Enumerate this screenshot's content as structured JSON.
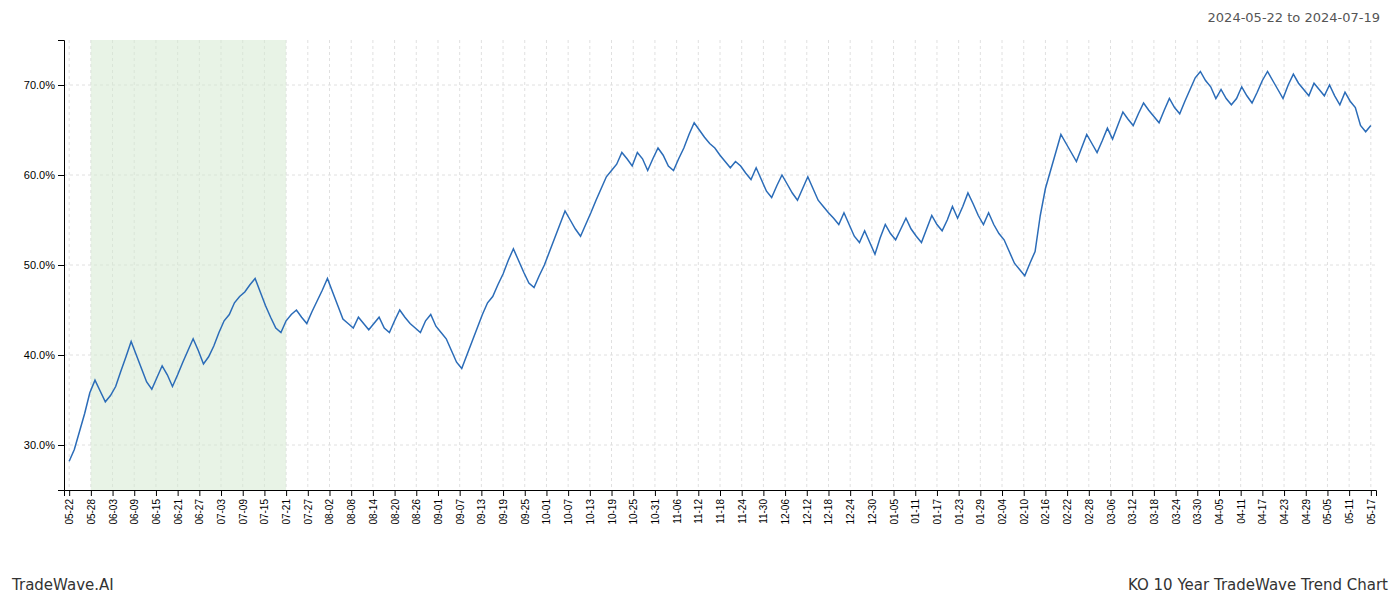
{
  "chart_data": {
    "type": "line",
    "title": "2024-05-22 to 2024-07-19",
    "annotations": [
      "TradeWave.AI",
      "KO 10 Year TradeWave Trend Chart"
    ],
    "color": "#2B6CB8",
    "grid": true,
    "xlim": [
      -1,
      253
    ],
    "xticks": [
      {
        "value": 0,
        "label": "05-22"
      },
      {
        "value": 4.2,
        "label": "05-28"
      },
      {
        "value": 8.4,
        "label": "06-03"
      },
      {
        "value": 12.6,
        "label": "06-09"
      },
      {
        "value": 16.8,
        "label": "06-15"
      },
      {
        "value": 21,
        "label": "06-21"
      },
      {
        "value": 25.2,
        "label": "06-27"
      },
      {
        "value": 29.4,
        "label": "07-03"
      },
      {
        "value": 33.6,
        "label": "07-09"
      },
      {
        "value": 37.8,
        "label": "07-15"
      },
      {
        "value": 42,
        "label": "07-21"
      },
      {
        "value": 46.2,
        "label": "07-27"
      },
      {
        "value": 50.4,
        "label": "08-02"
      },
      {
        "value": 54.6,
        "label": "08-08"
      },
      {
        "value": 58.8,
        "label": "08-14"
      },
      {
        "value": 63,
        "label": "08-20"
      },
      {
        "value": 67.2,
        "label": "08-26"
      },
      {
        "value": 71.4,
        "label": "09-01"
      },
      {
        "value": 75.6,
        "label": "09-07"
      },
      {
        "value": 79.8,
        "label": "09-13"
      },
      {
        "value": 84,
        "label": "09-19"
      },
      {
        "value": 88.2,
        "label": "09-25"
      },
      {
        "value": 92.4,
        "label": "10-01"
      },
      {
        "value": 96.6,
        "label": "10-07"
      },
      {
        "value": 100.8,
        "label": "10-13"
      },
      {
        "value": 105,
        "label": "10-19"
      },
      {
        "value": 109.2,
        "label": "10-25"
      },
      {
        "value": 113.4,
        "label": "10-31"
      },
      {
        "value": 117.6,
        "label": "11-06"
      },
      {
        "value": 121.8,
        "label": "11-12"
      },
      {
        "value": 126,
        "label": "11-18"
      },
      {
        "value": 130.2,
        "label": "11-24"
      },
      {
        "value": 134.4,
        "label": "11-30"
      },
      {
        "value": 138.6,
        "label": "12-06"
      },
      {
        "value": 142.8,
        "label": "12-12"
      },
      {
        "value": 147,
        "label": "12-18"
      },
      {
        "value": 151.2,
        "label": "12-24"
      },
      {
        "value": 155.4,
        "label": "12-30"
      },
      {
        "value": 159.6,
        "label": "01-05"
      },
      {
        "value": 163.8,
        "label": "01-11"
      },
      {
        "value": 168,
        "label": "01-17"
      },
      {
        "value": 172.2,
        "label": "01-23"
      },
      {
        "value": 176.4,
        "label": "01-29"
      },
      {
        "value": 180.6,
        "label": "02-04"
      },
      {
        "value": 184.8,
        "label": "02-10"
      },
      {
        "value": 189,
        "label": "02-16"
      },
      {
        "value": 193.2,
        "label": "02-22"
      },
      {
        "value": 197.4,
        "label": "02-28"
      },
      {
        "value": 201.6,
        "label": "03-06"
      },
      {
        "value": 205.8,
        "label": "03-12"
      },
      {
        "value": 210,
        "label": "03-18"
      },
      {
        "value": 214.2,
        "label": "03-24"
      },
      {
        "value": 218.4,
        "label": "03-30"
      },
      {
        "value": 222.6,
        "label": "04-05"
      },
      {
        "value": 226.8,
        "label": "04-11"
      },
      {
        "value": 231,
        "label": "04-17"
      },
      {
        "value": 235.2,
        "label": "04-23"
      },
      {
        "value": 239.4,
        "label": "04-29"
      },
      {
        "value": 243.6,
        "label": "05-05"
      },
      {
        "value": 247.8,
        "label": "05-11"
      },
      {
        "value": 252,
        "label": "05-17"
      }
    ],
    "ylim": [
      25,
      75
    ],
    "yticks": [
      {
        "value": 30,
        "label": "30.0%"
      },
      {
        "value": 40,
        "label": "40.0%"
      },
      {
        "value": 50,
        "label": "50.0%"
      },
      {
        "value": 60,
        "label": "60.0%"
      },
      {
        "value": 70,
        "label": "70.0%"
      }
    ],
    "span": {
      "x": [
        4.2,
        42
      ],
      "color": "#d6ead2"
    },
    "values": [
      28.2,
      29.5,
      31.5,
      33.5,
      35.8,
      37.2,
      36.0,
      34.8,
      35.5,
      36.5,
      38.2,
      39.8,
      41.5,
      40.0,
      38.5,
      37.0,
      36.2,
      37.5,
      38.8,
      37.8,
      36.5,
      37.8,
      39.2,
      40.5,
      41.8,
      40.5,
      39.0,
      39.8,
      41.0,
      42.5,
      43.8,
      44.5,
      45.8,
      46.5,
      47.0,
      47.8,
      48.5,
      47.0,
      45.5,
      44.2,
      43.0,
      42.5,
      43.8,
      44.5,
      45.0,
      44.2,
      43.5,
      44.8,
      46.0,
      47.2,
      48.5,
      47.0,
      45.5,
      44.0,
      43.5,
      43.0,
      44.2,
      43.5,
      42.8,
      43.5,
      44.2,
      43.0,
      42.5,
      43.8,
      45.0,
      44.2,
      43.5,
      43.0,
      42.5,
      43.8,
      44.5,
      43.2,
      42.5,
      41.8,
      40.5,
      39.2,
      38.5,
      40.0,
      41.5,
      43.0,
      44.5,
      45.8,
      46.5,
      47.8,
      49.0,
      50.5,
      51.8,
      50.5,
      49.2,
      48.0,
      47.5,
      48.8,
      50.0,
      51.5,
      53.0,
      54.5,
      56.0,
      55.0,
      54.0,
      53.2,
      54.5,
      55.8,
      57.2,
      58.5,
      59.8,
      60.5,
      61.2,
      62.5,
      61.8,
      61.0,
      62.5,
      61.8,
      60.5,
      61.8,
      63.0,
      62.2,
      61.0,
      60.5,
      61.8,
      63.0,
      64.5,
      65.8,
      65.0,
      64.2,
      63.5,
      63.0,
      62.2,
      61.5,
      60.8,
      61.5,
      61.0,
      60.2,
      59.5,
      60.8,
      59.5,
      58.2,
      57.5,
      58.8,
      60.0,
      59.0,
      58.0,
      57.2,
      58.5,
      59.8,
      58.5,
      57.2,
      56.5,
      55.8,
      55.2,
      54.5,
      55.8,
      54.5,
      53.2,
      52.5,
      53.8,
      52.5,
      51.2,
      53.0,
      54.5,
      53.5,
      52.8,
      54.0,
      55.2,
      54.0,
      53.2,
      52.5,
      54.0,
      55.5,
      54.5,
      53.8,
      55.0,
      56.5,
      55.2,
      56.5,
      58.0,
      56.8,
      55.5,
      54.5,
      55.8,
      54.5,
      53.5,
      52.8,
      51.5,
      50.2,
      49.5,
      48.8,
      50.2,
      51.5,
      55.5,
      58.5,
      60.5,
      62.5,
      64.5,
      63.5,
      62.5,
      61.5,
      63.0,
      64.5,
      63.5,
      62.5,
      63.8,
      65.2,
      64.0,
      65.5,
      67.0,
      66.2,
      65.5,
      66.8,
      68.0,
      67.2,
      66.5,
      65.8,
      67.2,
      68.5,
      67.5,
      66.8,
      68.2,
      69.5,
      70.8,
      71.5,
      70.5,
      69.8,
      68.5,
      69.5,
      68.5,
      67.8,
      68.5,
      69.8,
      68.8,
      68.0,
      69.2,
      70.5,
      71.5,
      70.5,
      69.5,
      68.5,
      70.0,
      71.2,
      70.2,
      69.5,
      68.8,
      70.2,
      69.5,
      68.8,
      70.0,
      68.8,
      67.8,
      69.2,
      68.2,
      67.5,
      65.5,
      64.8,
      65.5
    ]
  }
}
